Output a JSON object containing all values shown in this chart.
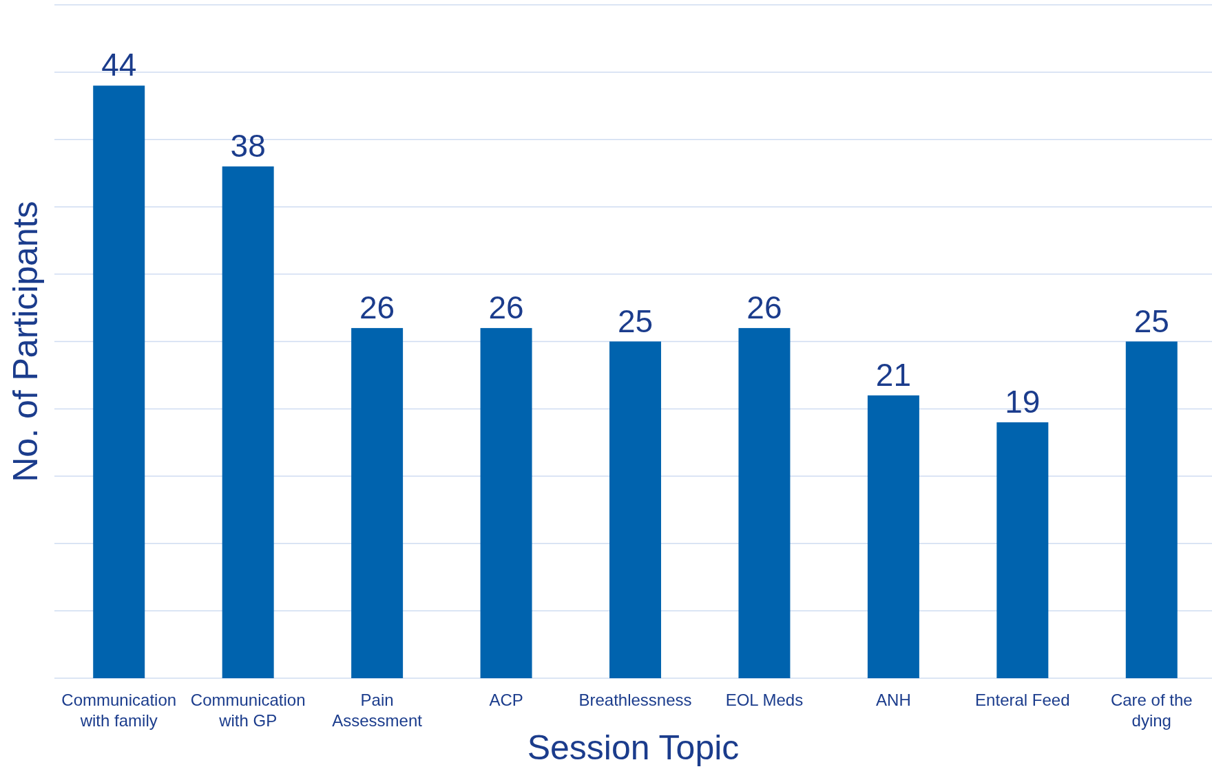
{
  "chart_data": {
    "type": "bar",
    "xlabel": "Session Topic",
    "ylabel": "No. of Participants",
    "categories": [
      "Communication with family",
      "Communication with GP",
      "Pain Assessment",
      "ACP",
      "Breathlessness",
      "EOL Meds",
      "ANH",
      "Enteral Feed",
      "Care of the dying"
    ],
    "values": [
      44,
      38,
      26,
      26,
      25,
      26,
      21,
      19,
      25
    ],
    "color": "#0063ae",
    "ylim": [
      0,
      50
    ],
    "yticks": [
      {
        "value": 0,
        "label": null
      },
      {
        "value": 5,
        "label": null
      },
      {
        "value": 10,
        "label": null
      },
      {
        "value": 15,
        "label": null
      },
      {
        "value": 20,
        "label": null
      },
      {
        "value": 25,
        "label": null
      },
      {
        "value": 30,
        "label": null
      },
      {
        "value": 35,
        "label": null
      },
      {
        "value": 40,
        "label": null
      },
      {
        "value": 45,
        "label": null
      },
      {
        "value": 50,
        "label": null
      }
    ],
    "grid": "y",
    "tick_labels": "x",
    "data_labels": true
  }
}
